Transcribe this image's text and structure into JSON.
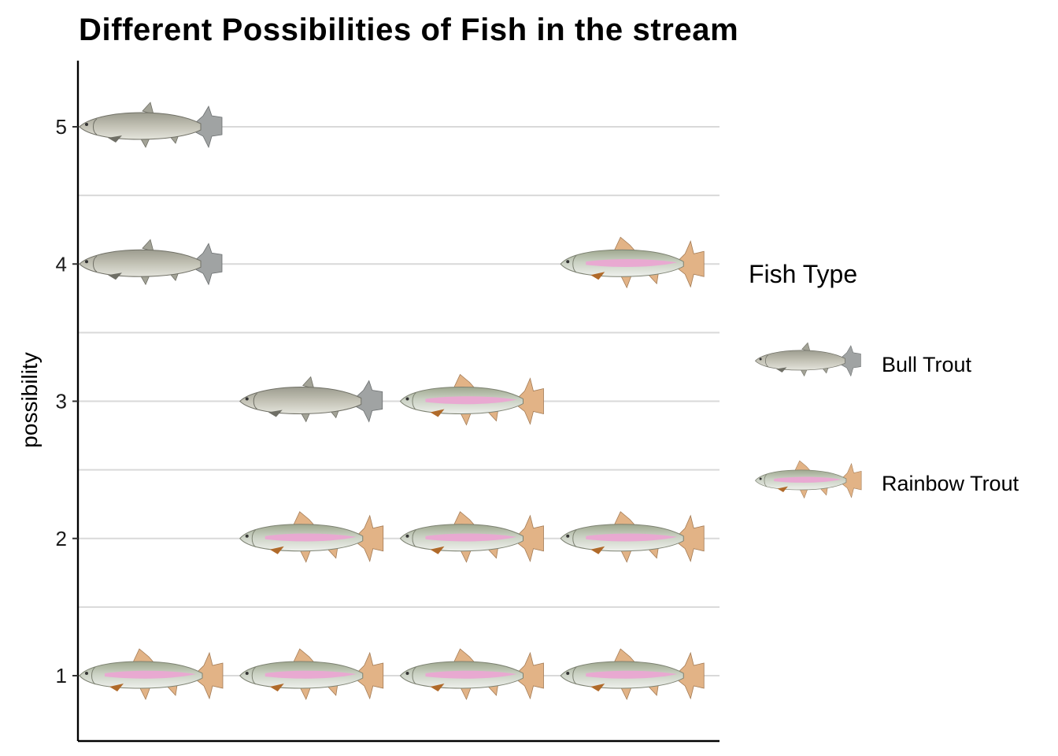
{
  "chart_data": {
    "type": "pictograph",
    "title": "Different Possibilities of Fish in the stream",
    "xlabel": "",
    "ylabel": "possibility",
    "y_ticks": [
      1,
      2,
      3,
      4,
      5
    ],
    "ylim": [
      0.5,
      5.5
    ],
    "x_slots": 4,
    "grid": "horizontal",
    "legend": {
      "title": "Fish Type",
      "placement": "right",
      "entries": [
        "Bull Trout",
        "Rainbow Trout"
      ]
    },
    "rows": [
      {
        "possibility": 1,
        "fish": [
          "Rainbow Trout",
          "Rainbow Trout",
          "Rainbow Trout",
          "Rainbow Trout"
        ]
      },
      {
        "possibility": 2,
        "fish": [
          "",
          "Rainbow Trout",
          "Rainbow Trout",
          "Rainbow Trout"
        ]
      },
      {
        "possibility": 3,
        "fish": [
          "",
          "Bull Trout",
          "Rainbow Trout",
          ""
        ]
      },
      {
        "possibility": 4,
        "fish": [
          "Bull Trout",
          "",
          "",
          "Rainbow Trout"
        ]
      },
      {
        "possibility": 5,
        "fish": [
          "Bull Trout",
          "",
          "",
          ""
        ]
      }
    ],
    "colors": {
      "bull_body": "#b9b8ab",
      "bull_fin": "#a0a3a3",
      "rainbow_body": "#c9d0c4",
      "rainbow_stripe": "#eaa6d2",
      "rainbow_fin": "#e2b386",
      "grid": "#d9d9d9"
    }
  }
}
